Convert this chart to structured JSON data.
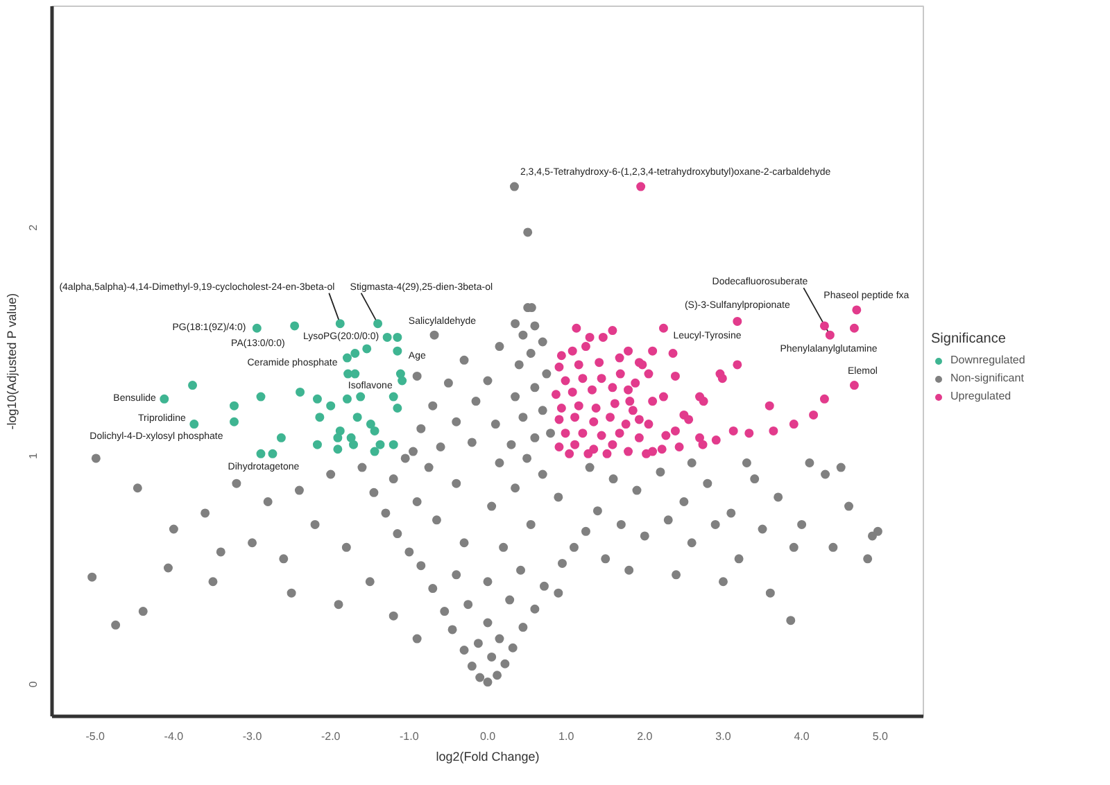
{
  "chart_data": {
    "type": "scatter",
    "xlabel": "log2(Fold Change)",
    "ylabel": "-log10(Adjusted P value)",
    "legend_title": "Significance",
    "legend": "right",
    "marker": "circle",
    "xlim": [
      -5.55,
      5.55
    ],
    "ylim": [
      -0.14,
      2.97
    ],
    "xticks": [
      {
        "value": -5,
        "label": "-5.0"
      },
      {
        "value": -4,
        "label": "-4.0"
      },
      {
        "value": -3,
        "label": "-3.0"
      },
      {
        "value": -2,
        "label": "-2.0"
      },
      {
        "value": -1,
        "label": "-1.0"
      },
      {
        "value": 0,
        "label": "0.0"
      },
      {
        "value": 1,
        "label": "1.0"
      },
      {
        "value": 2,
        "label": "2.0"
      },
      {
        "value": 3,
        "label": "3.0"
      },
      {
        "value": 4,
        "label": "4.0"
      },
      {
        "value": 5,
        "label": "5.0"
      }
    ],
    "yticks": [
      0,
      1,
      2
    ],
    "series": [
      {
        "name": "Downregulated",
        "color": "#3fb592",
        "x": [
          -2.94,
          -2.46,
          -1.88,
          -1.4,
          -1.28,
          -1.15,
          -1.54,
          -1.69,
          -1.79,
          -1.15,
          -1.78,
          -1.69,
          -1.11,
          -1.09,
          -3.76,
          -4.12,
          -2.89,
          -3.23,
          -2.39,
          -2.17,
          -2.0,
          -1.79,
          -1.62,
          -1.2,
          -1.15,
          -3.23,
          -3.74,
          -2.14,
          -1.66,
          -1.49,
          -1.44,
          -1.88,
          -1.91,
          -1.74,
          -2.63,
          -2.17,
          -1.91,
          -1.71,
          -1.37,
          -1.44,
          -1.2,
          -2.89,
          -2.74
        ],
        "values": [
          1.56,
          1.57,
          1.58,
          1.58,
          1.52,
          1.52,
          1.47,
          1.45,
          1.43,
          1.46,
          1.36,
          1.36,
          1.36,
          1.33,
          1.31,
          1.25,
          1.26,
          1.22,
          1.28,
          1.25,
          1.22,
          1.25,
          1.26,
          1.26,
          1.21,
          1.15,
          1.14,
          1.17,
          1.17,
          1.14,
          1.11,
          1.11,
          1.08,
          1.08,
          1.08,
          1.05,
          1.03,
          1.05,
          1.05,
          1.02,
          1.05,
          1.01,
          1.01
        ]
      },
      {
        "name": "Non-significant",
        "color": "#808080",
        "x": [
          0.0,
          -0.1,
          0.12,
          -0.2,
          0.22,
          0.05,
          -0.3,
          0.32,
          -0.12,
          0.15,
          -0.45,
          0.45,
          0.0,
          -0.55,
          0.6,
          -0.25,
          0.28,
          0.9,
          -0.7,
          0.72,
          0.0,
          -0.4,
          0.42,
          -0.85,
          0.95,
          -1.0,
          1.1,
          0.2,
          -0.3,
          -1.15,
          1.25,
          0.55,
          -0.65,
          -1.3,
          1.4,
          0.05,
          -0.9,
          0.9,
          -1.45,
          0.35,
          -0.4,
          -1.2,
          0.7,
          -0.75,
          0.15,
          -1.05,
          0.5,
          -0.95,
          -0.6,
          -0.2,
          0.3,
          0.6,
          0.8,
          -0.85,
          -0.4,
          0.1,
          0.45,
          0.7,
          -0.7,
          -0.15,
          0.35,
          0.6,
          -0.5,
          0.0,
          0.75,
          -0.9,
          0.4,
          -0.3,
          0.55,
          0.15,
          0.7,
          0.45,
          -0.68,
          0.6,
          0.35,
          0.51,
          0.56,
          0.51,
          0.34,
          1.3,
          1.6,
          1.9,
          2.2,
          2.5,
          2.8,
          3.1,
          3.4,
          3.7,
          4.0,
          4.3,
          4.6,
          4.9,
          4.84,
          4.4,
          3.9,
          3.5,
          3.2,
          2.9,
          2.6,
          2.3,
          2.0,
          1.7,
          1.5,
          1.8,
          2.4,
          3.0,
          3.6,
          3.86,
          4.97,
          4.5,
          4.1,
          3.3,
          2.6,
          -1.6,
          -2.0,
          -2.4,
          -2.8,
          -3.2,
          -3.6,
          -4.0,
          -4.46,
          -4.99,
          -5.04,
          -4.74,
          -4.39,
          -4.07,
          -3.4,
          -3.0,
          -2.6,
          -2.2,
          -1.8,
          -1.5,
          -1.9,
          -2.5,
          -1.2,
          -0.9,
          -3.5
        ],
        "values": [
          0.01,
          0.03,
          0.04,
          0.08,
          0.09,
          0.12,
          0.15,
          0.16,
          0.18,
          0.2,
          0.24,
          0.25,
          0.27,
          0.32,
          0.33,
          0.35,
          0.37,
          0.4,
          0.42,
          0.43,
          0.45,
          0.48,
          0.5,
          0.52,
          0.53,
          0.58,
          0.6,
          0.6,
          0.62,
          0.66,
          0.67,
          0.7,
          0.72,
          0.75,
          0.76,
          0.78,
          0.8,
          0.82,
          0.84,
          0.86,
          0.88,
          0.9,
          0.92,
          0.95,
          0.97,
          0.99,
          0.99,
          1.02,
          1.04,
          1.06,
          1.05,
          1.08,
          1.1,
          1.12,
          1.15,
          1.14,
          1.17,
          1.2,
          1.22,
          1.24,
          1.26,
          1.3,
          1.32,
          1.33,
          1.36,
          1.35,
          1.4,
          1.42,
          1.45,
          1.48,
          1.5,
          1.53,
          1.53,
          1.57,
          1.58,
          1.65,
          1.65,
          1.98,
          2.18,
          0.95,
          0.9,
          0.85,
          0.93,
          0.8,
          0.88,
          0.75,
          0.9,
          0.82,
          0.7,
          0.92,
          0.78,
          0.65,
          0.55,
          0.6,
          0.6,
          0.68,
          0.55,
          0.7,
          0.62,
          0.72,
          0.65,
          0.7,
          0.55,
          0.5,
          0.48,
          0.45,
          0.4,
          0.28,
          0.67,
          0.95,
          0.97,
          0.97,
          0.97,
          0.95,
          0.92,
          0.85,
          0.8,
          0.88,
          0.75,
          0.68,
          0.86,
          0.99,
          0.47,
          0.26,
          0.32,
          0.51,
          0.58,
          0.62,
          0.55,
          0.7,
          0.6,
          0.45,
          0.35,
          0.4,
          0.3,
          0.2,
          0.45
        ]
      },
      {
        "name": "Upregulated",
        "color": "#e23b8c",
        "x": [
          1.95,
          4.7,
          4.67,
          4.29,
          4.36,
          3.18,
          2.24,
          1.59,
          1.47,
          1.3,
          1.13,
          1.79,
          2.1,
          2.36,
          1.93,
          1.97,
          2.05,
          2.39,
          2.96,
          2.99,
          3.18,
          4.67,
          4.29,
          4.15,
          3.9,
          3.59,
          3.64,
          3.33,
          3.13,
          2.91,
          2.7,
          2.74,
          2.7,
          2.75,
          2.5,
          2.56,
          2.39,
          2.27,
          2.22,
          2.1,
          2.44,
          2.05,
          1.93,
          2.24,
          2.1,
          1.88,
          1.81,
          0.94,
          1.08,
          1.25,
          0.91,
          1.16,
          1.42,
          1.68,
          0.99,
          1.21,
          1.45,
          1.69,
          0.87,
          1.08,
          1.33,
          1.59,
          1.79,
          0.94,
          1.16,
          1.38,
          1.62,
          1.85,
          0.91,
          1.11,
          1.35,
          1.56,
          1.76,
          0.99,
          1.21,
          1.45,
          1.68,
          1.93,
          0.91,
          1.11,
          1.35,
          1.59,
          1.79,
          1.04,
          1.28,
          1.52,
          2.02
        ],
        "values": [
          2.18,
          1.64,
          1.56,
          1.57,
          1.53,
          1.59,
          1.56,
          1.55,
          1.52,
          1.52,
          1.56,
          1.46,
          1.46,
          1.45,
          1.41,
          1.4,
          1.36,
          1.35,
          1.36,
          1.34,
          1.4,
          1.31,
          1.25,
          1.18,
          1.14,
          1.22,
          1.11,
          1.1,
          1.11,
          1.07,
          1.08,
          1.05,
          1.26,
          1.24,
          1.18,
          1.16,
          1.11,
          1.09,
          1.03,
          1.02,
          1.04,
          1.14,
          1.16,
          1.26,
          1.24,
          1.32,
          1.24,
          1.44,
          1.46,
          1.48,
          1.39,
          1.4,
          1.41,
          1.43,
          1.33,
          1.34,
          1.34,
          1.36,
          1.27,
          1.28,
          1.29,
          1.3,
          1.29,
          1.21,
          1.22,
          1.21,
          1.23,
          1.2,
          1.16,
          1.17,
          1.15,
          1.17,
          1.14,
          1.1,
          1.1,
          1.09,
          1.1,
          1.08,
          1.04,
          1.05,
          1.03,
          1.05,
          1.02,
          1.01,
          1.01,
          1.01,
          1.01
        ]
      }
    ],
    "annotations": [
      {
        "text": "2,3,4,5-Tetrahydroxy-6-(1,2,3,4-tetrahydroxybutyl)oxane-2-carbaldehyde",
        "x": 1.95,
        "y": 2.18
      },
      {
        "text": "(4alpha,5alpha)-4,14-Dimethyl-9,19-cyclocholest-24-en-3beta-ol",
        "x": -1.88,
        "y": 1.58
      },
      {
        "text": "Stigmasta-4(29),25-dien-3beta-ol",
        "x": -1.4,
        "y": 1.58
      },
      {
        "text": "PG(18:1(9Z)/4:0)",
        "x": -2.94,
        "y": 1.56
      },
      {
        "text": "PA(13:0/0:0)",
        "x": -2.46,
        "y": 1.57
      },
      {
        "text": "Ceramide phosphate",
        "x": -1.79,
        "y": 1.43
      },
      {
        "text": "LysoPG(20:0/0:0)",
        "x": -1.28,
        "y": 1.52
      },
      {
        "text": "Salicylaldehyde",
        "x": -1.15,
        "y": 1.52
      },
      {
        "text": "Age",
        "x": -1.15,
        "y": 1.46
      },
      {
        "text": "Isoflavone",
        "x": -1.09,
        "y": 1.33
      },
      {
        "text": "Bensulide",
        "x": -4.12,
        "y": 1.25
      },
      {
        "text": "Triprolidine",
        "x": -3.74,
        "y": 1.14
      },
      {
        "text": "Dolichyl-4-D-xylosyl phosphate",
        "x": -3.23,
        "y": 1.15
      },
      {
        "text": "Dihydrotagetone",
        "x": -2.89,
        "y": 1.01
      },
      {
        "text": "Leucyl-Tyrosine",
        "x": 2.24,
        "y": 1.56
      },
      {
        "text": "(S)-3-Sulfanylpropionate",
        "x": 3.18,
        "y": 1.59
      },
      {
        "text": "Dodecafluorosuberate",
        "x": 4.36,
        "y": 1.53
      },
      {
        "text": "Phenylalanylglutamine",
        "x": 4.29,
        "y": 1.57
      },
      {
        "text": "Phaseol peptide fxa",
        "x": 4.7,
        "y": 1.64
      },
      {
        "text": "Elemol",
        "x": 4.67,
        "y": 1.31
      }
    ]
  }
}
